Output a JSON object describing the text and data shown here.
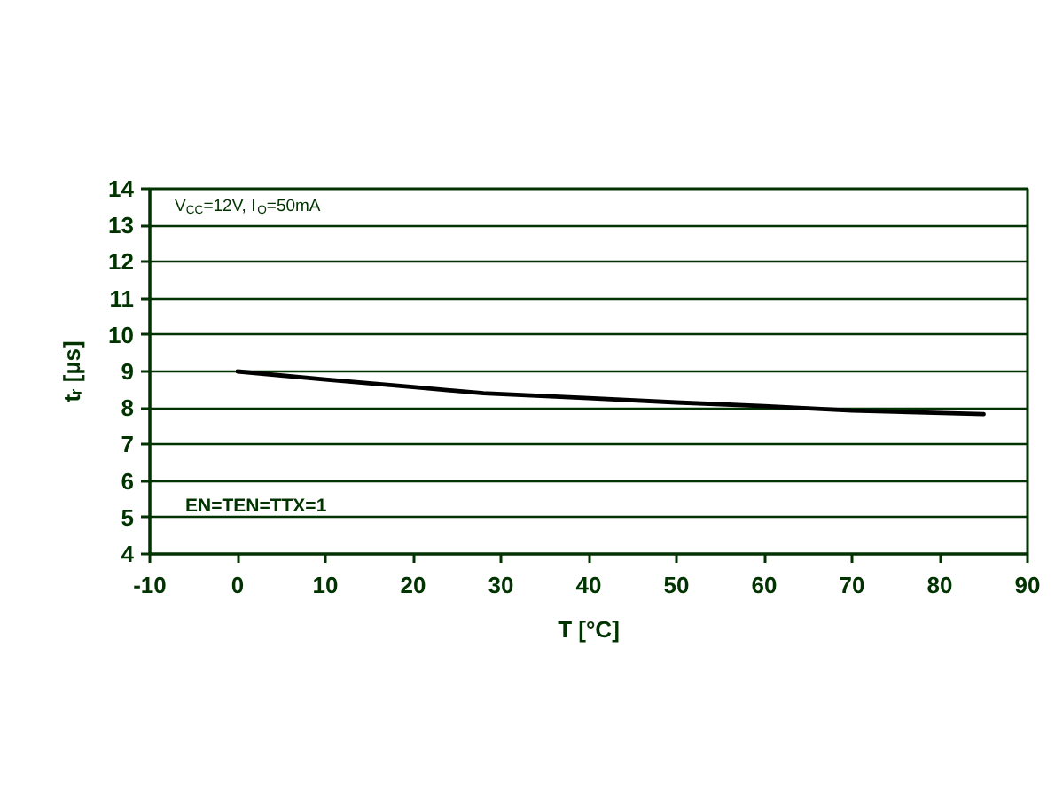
{
  "chart_data": {
    "type": "line",
    "xlabel": "T [°C]",
    "ylabel": "tᵣ [µs]",
    "annotations": [
      "V$_{CC}$=12V, I$_{O}$=50mA",
      "EN=TEN=TTX=1"
    ],
    "x": [
      0,
      10,
      20,
      28,
      40,
      50,
      60,
      70,
      85
    ],
    "series": [
      {
        "color": "#000000",
        "values": [
          9.0,
          8.78,
          8.57,
          8.4,
          8.27,
          8.15,
          8.05,
          7.93,
          7.83
        ]
      }
    ],
    "xlim": [
      -10,
      90
    ],
    "ylim": [
      4,
      14
    ],
    "xticks": [
      -10,
      0,
      10,
      20,
      30,
      40,
      50,
      60,
      70,
      80,
      90
    ],
    "yticks": [
      4,
      5,
      6,
      7,
      8,
      9,
      10,
      11,
      12,
      13,
      14
    ],
    "grid": "y",
    "marker": "none",
    "line_style": "solid"
  }
}
